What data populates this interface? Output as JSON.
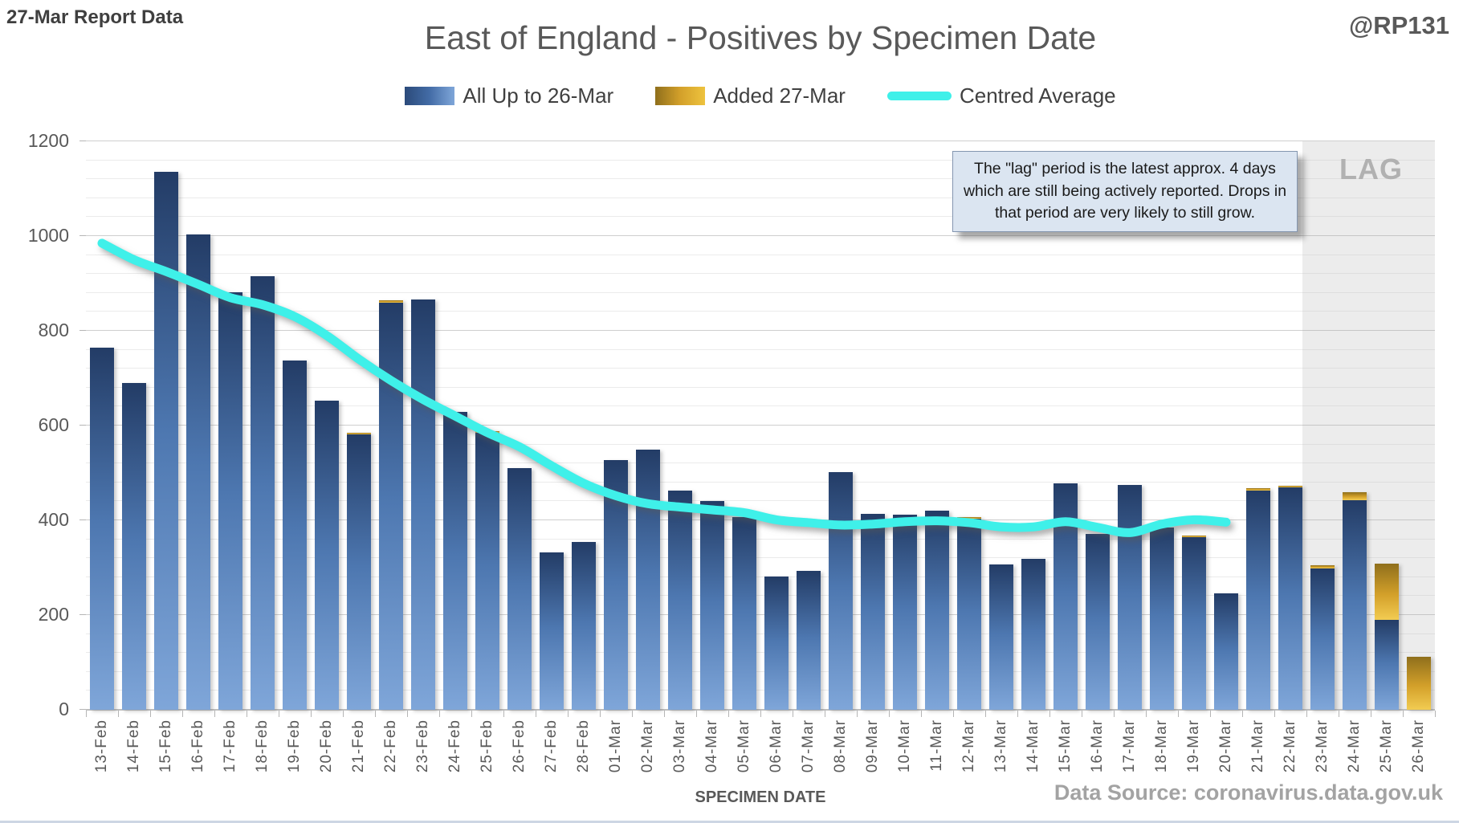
{
  "header": {
    "report_label": "27-Mar Report Data",
    "handle": "@RP131"
  },
  "title": "East of England - Positives by Specimen Date",
  "legend": [
    {
      "label": "All Up to 26-Mar",
      "swatch": "blue-gradient-bar",
      "color": "#4d77b0"
    },
    {
      "label": "Added 27-Mar",
      "swatch": "gold-gradient-bar",
      "color": "#d3a02a"
    },
    {
      "label": "Centred Average",
      "swatch": "cyan-line",
      "color": "#3ff0e9"
    }
  ],
  "annotation": {
    "text": "The \"lag\" period is the latest approx. 4 days which are still being actively reported.  Drops in that period are very likely to still grow."
  },
  "lag_label": "LAG",
  "axes": {
    "x_label": "SPECIMEN DATE",
    "y_ticks": [
      0,
      200,
      400,
      600,
      800,
      1000,
      1200
    ]
  },
  "footer": {
    "data_source": "Data Source: coronavirus.data.gov.uk"
  },
  "chart_data": {
    "type": "bar",
    "title": "East of England - Positives by Specimen Date",
    "xlabel": "SPECIMEN DATE",
    "ylabel": "",
    "ylim": [
      0,
      1200
    ],
    "major_grid_unit": 200,
    "minor_grid_unit": 40,
    "legend_position": "top",
    "lag_region": {
      "start_category": "23-Mar",
      "end_category": "26-Mar"
    },
    "categories": [
      "13-Feb",
      "14-Feb",
      "15-Feb",
      "16-Feb",
      "17-Feb",
      "18-Feb",
      "19-Feb",
      "20-Feb",
      "21-Feb",
      "22-Feb",
      "23-Feb",
      "24-Feb",
      "25-Feb",
      "26-Feb",
      "27-Feb",
      "28-Feb",
      "01-Mar",
      "02-Mar",
      "03-Mar",
      "04-Mar",
      "05-Mar",
      "06-Mar",
      "07-Mar",
      "08-Mar",
      "09-Mar",
      "10-Mar",
      "11-Mar",
      "12-Mar",
      "13-Mar",
      "14-Mar",
      "15-Mar",
      "16-Mar",
      "17-Mar",
      "18-Mar",
      "19-Mar",
      "20-Mar",
      "21-Mar",
      "22-Mar",
      "23-Mar",
      "24-Mar",
      "25-Mar",
      "26-Mar"
    ],
    "series": [
      {
        "name": "All Up to 26-Mar",
        "type": "bar",
        "values": [
          765,
          690,
          1135,
          1003,
          882,
          915,
          737,
          652,
          581,
          860,
          866,
          629,
          585,
          510,
          332,
          355,
          527,
          549,
          462,
          441,
          407,
          282,
          294,
          501,
          414,
          412,
          420,
          403,
          307,
          318,
          478,
          372,
          475,
          384,
          364,
          246,
          463,
          469,
          299,
          442,
          190,
          0
        ]
      },
      {
        "name": "Added 27-Mar",
        "type": "bar-stacked-on-previous",
        "values": [
          0,
          0,
          0,
          0,
          0,
          0,
          0,
          0,
          4,
          5,
          0,
          0,
          4,
          0,
          0,
          0,
          0,
          0,
          0,
          0,
          0,
          0,
          0,
          0,
          0,
          0,
          0,
          4,
          0,
          0,
          0,
          0,
          0,
          0,
          3,
          0,
          4,
          4,
          6,
          17,
          118,
          112
        ]
      },
      {
        "name": "Centred Average",
        "type": "line",
        "values": [
          985,
          950,
          925,
          898,
          870,
          855,
          830,
          790,
          740,
          695,
          655,
          620,
          585,
          555,
          515,
          478,
          452,
          435,
          428,
          422,
          416,
          401,
          395,
          390,
          392,
          397,
          399,
          395,
          386,
          386,
          397,
          385,
          374,
          392,
          401,
          396,
          null,
          null,
          null,
          null,
          null,
          null
        ]
      }
    ],
    "colors": {
      "bar_blue_top": "#233c66",
      "bar_blue_bottom": "#7fa6d9",
      "bar_gold_top": "#8f6f1c",
      "bar_gold_bottom": "#f2cc52",
      "average_line": "#3ff0e9",
      "lag_band": "#ececec",
      "grid_major": "#d2d2d2",
      "grid_minor": "#efefef"
    }
  }
}
